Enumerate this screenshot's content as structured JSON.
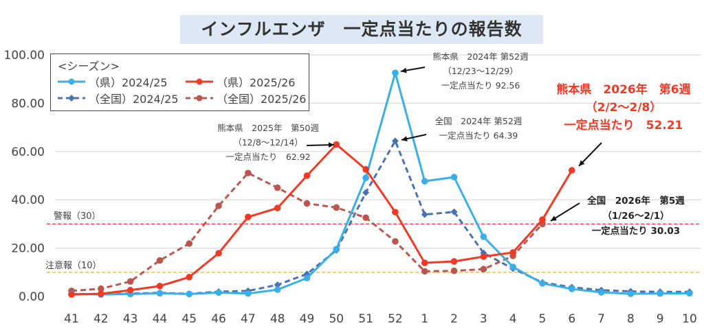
{
  "chart_data": {
    "type": "line",
    "title": "インフルエンザ　一定点当たりの報告数",
    "categories": [
      "41",
      "42",
      "43",
      "44",
      "45",
      "46",
      "47",
      "48",
      "49",
      "50",
      "51",
      "52",
      "1",
      "2",
      "3",
      "4",
      "5",
      "6",
      "7",
      "8",
      "9",
      "10"
    ],
    "ylim": [
      0,
      100
    ],
    "yticks": [
      "0.00",
      "20.00",
      "40.00",
      "60.00",
      "80.00",
      "100.00"
    ],
    "grid": true,
    "legend": {
      "title": "<シーズン>",
      "placement": "top-left"
    },
    "series": [
      {
        "name": "（県）2024/25",
        "color": "#3aaee6",
        "dash": false,
        "marker": "circle",
        "values": [
          1.0,
          0.8,
          1.0,
          1.3,
          1.0,
          1.6,
          1.2,
          2.8,
          7.6,
          19.6,
          49.1,
          92.56,
          47.7,
          49.4,
          24.7,
          12.2,
          5.4,
          3.1,
          1.7,
          1.1,
          1.2,
          1.3
        ]
      },
      {
        "name": "（県）2025/26",
        "color": "#f03a26",
        "dash": false,
        "marker": "circle",
        "values": [
          0.8,
          1.1,
          2.6,
          4.3,
          8.0,
          17.9,
          32.9,
          36.6,
          50.0,
          62.92,
          52.6,
          34.9,
          13.9,
          14.5,
          16.5,
          18.2,
          31.8,
          52.21,
          null,
          null,
          null,
          null
        ]
      },
      {
        "name": "（全国）2024/25",
        "color": "#4a72b0",
        "dash": true,
        "marker": "diamond",
        "values": [
          1.0,
          1.0,
          1.2,
          1.5,
          1.1,
          2.0,
          2.3,
          4.8,
          9.3,
          19.1,
          43.0,
          64.39,
          33.9,
          35.0,
          18.0,
          11.5,
          5.8,
          3.8,
          2.6,
          2.1,
          1.9,
          1.9
        ]
      },
      {
        "name": "（全国）2025/26",
        "color": "#b9564e",
        "dash": true,
        "marker": "circle",
        "values": [
          2.3,
          3.2,
          6.2,
          14.9,
          21.9,
          37.5,
          51.1,
          45.0,
          38.5,
          36.8,
          32.6,
          22.8,
          10.4,
          10.6,
          11.3,
          16.8,
          30.03,
          null,
          null,
          null,
          null,
          null
        ]
      }
    ],
    "reference_lines": [
      {
        "label": "警報（30）",
        "value": 30,
        "color": "#f03a26"
      },
      {
        "label": "注意報（10）",
        "value": 10,
        "color": "#f5b52a"
      }
    ],
    "annotations": [
      {
        "lines": [
          "熊本県　2025年　第50週",
          "（12/8〜12/14）",
          "一定点当たり　62.92"
        ]
      },
      {
        "lines": [
          "熊本県　2024年 第52週",
          "（12/23〜12/29）",
          "一定点当たり  92.56"
        ]
      },
      {
        "lines": [
          "全国　2024年 第52週",
          "一定点当たり  64.39"
        ]
      },
      {
        "lines": [
          "熊本県　2026年　第6週",
          "（2/2〜2/8）",
          "一定点当たり　52.21"
        ]
      },
      {
        "lines": [
          "全国　2026年　第5週",
          "（1/26〜2/1）",
          "一定点当たり  30.03"
        ]
      }
    ]
  }
}
